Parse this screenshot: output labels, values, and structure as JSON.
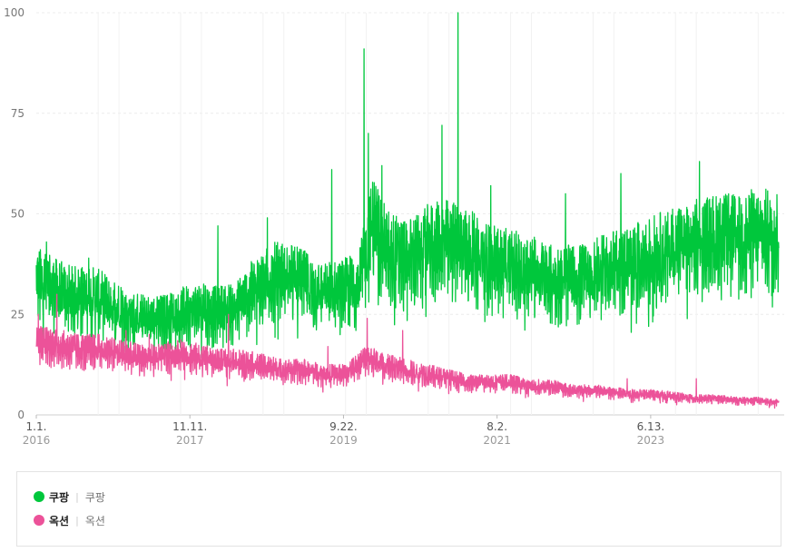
{
  "chart_data": {
    "type": "line",
    "ylim": [
      0,
      100
    ],
    "yticks": [
      0,
      25,
      50,
      75,
      100
    ],
    "grid": true,
    "legend_position": "bottom",
    "x_range": [
      "2016-01-01",
      "2024-12-31"
    ],
    "x_ticks": [
      {
        "label": "1.1.",
        "year": "2016",
        "date": "2016-01-01"
      },
      {
        "label": "11.11.",
        "year": "2017",
        "date": "2017-11-11"
      },
      {
        "label": "9.22.",
        "year": "2019",
        "date": "2019-09-22"
      },
      {
        "label": "8.2.",
        "year": "2021",
        "date": "2021-08-02"
      },
      {
        "label": "6.13.",
        "year": "2023",
        "date": "2023-06-13"
      }
    ],
    "series": [
      {
        "name": "쿠팡",
        "color": "#00c73c",
        "points": [
          [
            "2016-01-01",
            33
          ],
          [
            "2016-03-01",
            31
          ],
          [
            "2016-06-01",
            29
          ],
          [
            "2016-09-01",
            29
          ],
          [
            "2016-12-01",
            27
          ],
          [
            "2017-03-01",
            24
          ],
          [
            "2017-06-01",
            23
          ],
          [
            "2017-09-01",
            24
          ],
          [
            "2017-12-01",
            26
          ],
          [
            "2018-03-01",
            25
          ],
          [
            "2018-06-01",
            26
          ],
          [
            "2018-09-01",
            31
          ],
          [
            "2018-12-01",
            34
          ],
          [
            "2019-03-01",
            33
          ],
          [
            "2019-06-01",
            30
          ],
          [
            "2019-09-01",
            30
          ],
          [
            "2019-12-01",
            32
          ],
          [
            "2020-02-01",
            47
          ],
          [
            "2020-04-01",
            40
          ],
          [
            "2020-07-01",
            38
          ],
          [
            "2020-10-01",
            41
          ],
          [
            "2021-01-01",
            42
          ],
          [
            "2021-04-01",
            40
          ],
          [
            "2021-07-01",
            37
          ],
          [
            "2021-10-01",
            36
          ],
          [
            "2022-01-01",
            35
          ],
          [
            "2022-04-01",
            33
          ],
          [
            "2022-07-01",
            33
          ],
          [
            "2022-10-01",
            34
          ],
          [
            "2023-01-01",
            36
          ],
          [
            "2023-04-01",
            37
          ],
          [
            "2023-07-01",
            39
          ],
          [
            "2023-10-01",
            41
          ],
          [
            "2024-01-01",
            42
          ],
          [
            "2024-04-01",
            43
          ],
          [
            "2024-07-01",
            43
          ],
          [
            "2024-10-01",
            44
          ],
          [
            "2024-12-31",
            44
          ]
        ],
        "spikes": [
          [
            "2018-03-15",
            47
          ],
          [
            "2018-10-20",
            49
          ],
          [
            "2019-08-01",
            61
          ],
          [
            "2019-12-22",
            91
          ],
          [
            "2020-01-10",
            70
          ],
          [
            "2020-03-10",
            62
          ],
          [
            "2020-12-01",
            72
          ],
          [
            "2021-02-10",
            100
          ],
          [
            "2021-07-05",
            57
          ],
          [
            "2022-06-01",
            55
          ],
          [
            "2023-02-01",
            60
          ],
          [
            "2024-01-15",
            63
          ],
          [
            "2024-09-01",
            56
          ],
          [
            "2016-02-15",
            43
          ],
          [
            "2016-08-20",
            39
          ]
        ]
      },
      {
        "name": "옥션",
        "color": "#ec5299",
        "points": [
          [
            "2016-01-01",
            18
          ],
          [
            "2016-04-01",
            17
          ],
          [
            "2016-07-01",
            16
          ],
          [
            "2016-10-01",
            16
          ],
          [
            "2017-01-01",
            15
          ],
          [
            "2017-04-01",
            14
          ],
          [
            "2017-07-01",
            14
          ],
          [
            "2017-10-01",
            15
          ],
          [
            "2018-01-01",
            14
          ],
          [
            "2018-04-01",
            13
          ],
          [
            "2018-07-01",
            13
          ],
          [
            "2018-10-01",
            12
          ],
          [
            "2019-01-01",
            11
          ],
          [
            "2019-04-01",
            11
          ],
          [
            "2019-07-01",
            10
          ],
          [
            "2019-10-01",
            10
          ],
          [
            "2020-01-01",
            14
          ],
          [
            "2020-04-01",
            12
          ],
          [
            "2020-07-01",
            11
          ],
          [
            "2020-10-01",
            10
          ],
          [
            "2021-01-01",
            9
          ],
          [
            "2021-04-01",
            8
          ],
          [
            "2021-07-01",
            8
          ],
          [
            "2021-10-01",
            8
          ],
          [
            "2022-01-01",
            7
          ],
          [
            "2022-04-01",
            7
          ],
          [
            "2022-07-01",
            6
          ],
          [
            "2022-10-01",
            6
          ],
          [
            "2023-01-01",
            5.5
          ],
          [
            "2023-04-01",
            5
          ],
          [
            "2023-07-01",
            5
          ],
          [
            "2023-10-01",
            4.5
          ],
          [
            "2024-01-01",
            4
          ],
          [
            "2024-04-01",
            4
          ],
          [
            "2024-07-01",
            3.5
          ],
          [
            "2024-10-01",
            3.5
          ],
          [
            "2024-12-31",
            3
          ]
        ],
        "spikes": [
          [
            "2016-01-10",
            25
          ],
          [
            "2016-04-01",
            30
          ],
          [
            "2017-02-01",
            21
          ],
          [
            "2017-05-15",
            20
          ],
          [
            "2018-05-01",
            25
          ],
          [
            "2019-07-15",
            17
          ],
          [
            "2020-01-05",
            24
          ],
          [
            "2020-06-10",
            21
          ],
          [
            "2023-03-01",
            9
          ],
          [
            "2024-01-01",
            9
          ]
        ]
      }
    ]
  },
  "legend": {
    "items": [
      {
        "name": "쿠팡",
        "sub": "쿠팡",
        "color": "#00c73c"
      },
      {
        "name": "옥션",
        "sub": "옥션",
        "color": "#ec5299"
      }
    ]
  }
}
